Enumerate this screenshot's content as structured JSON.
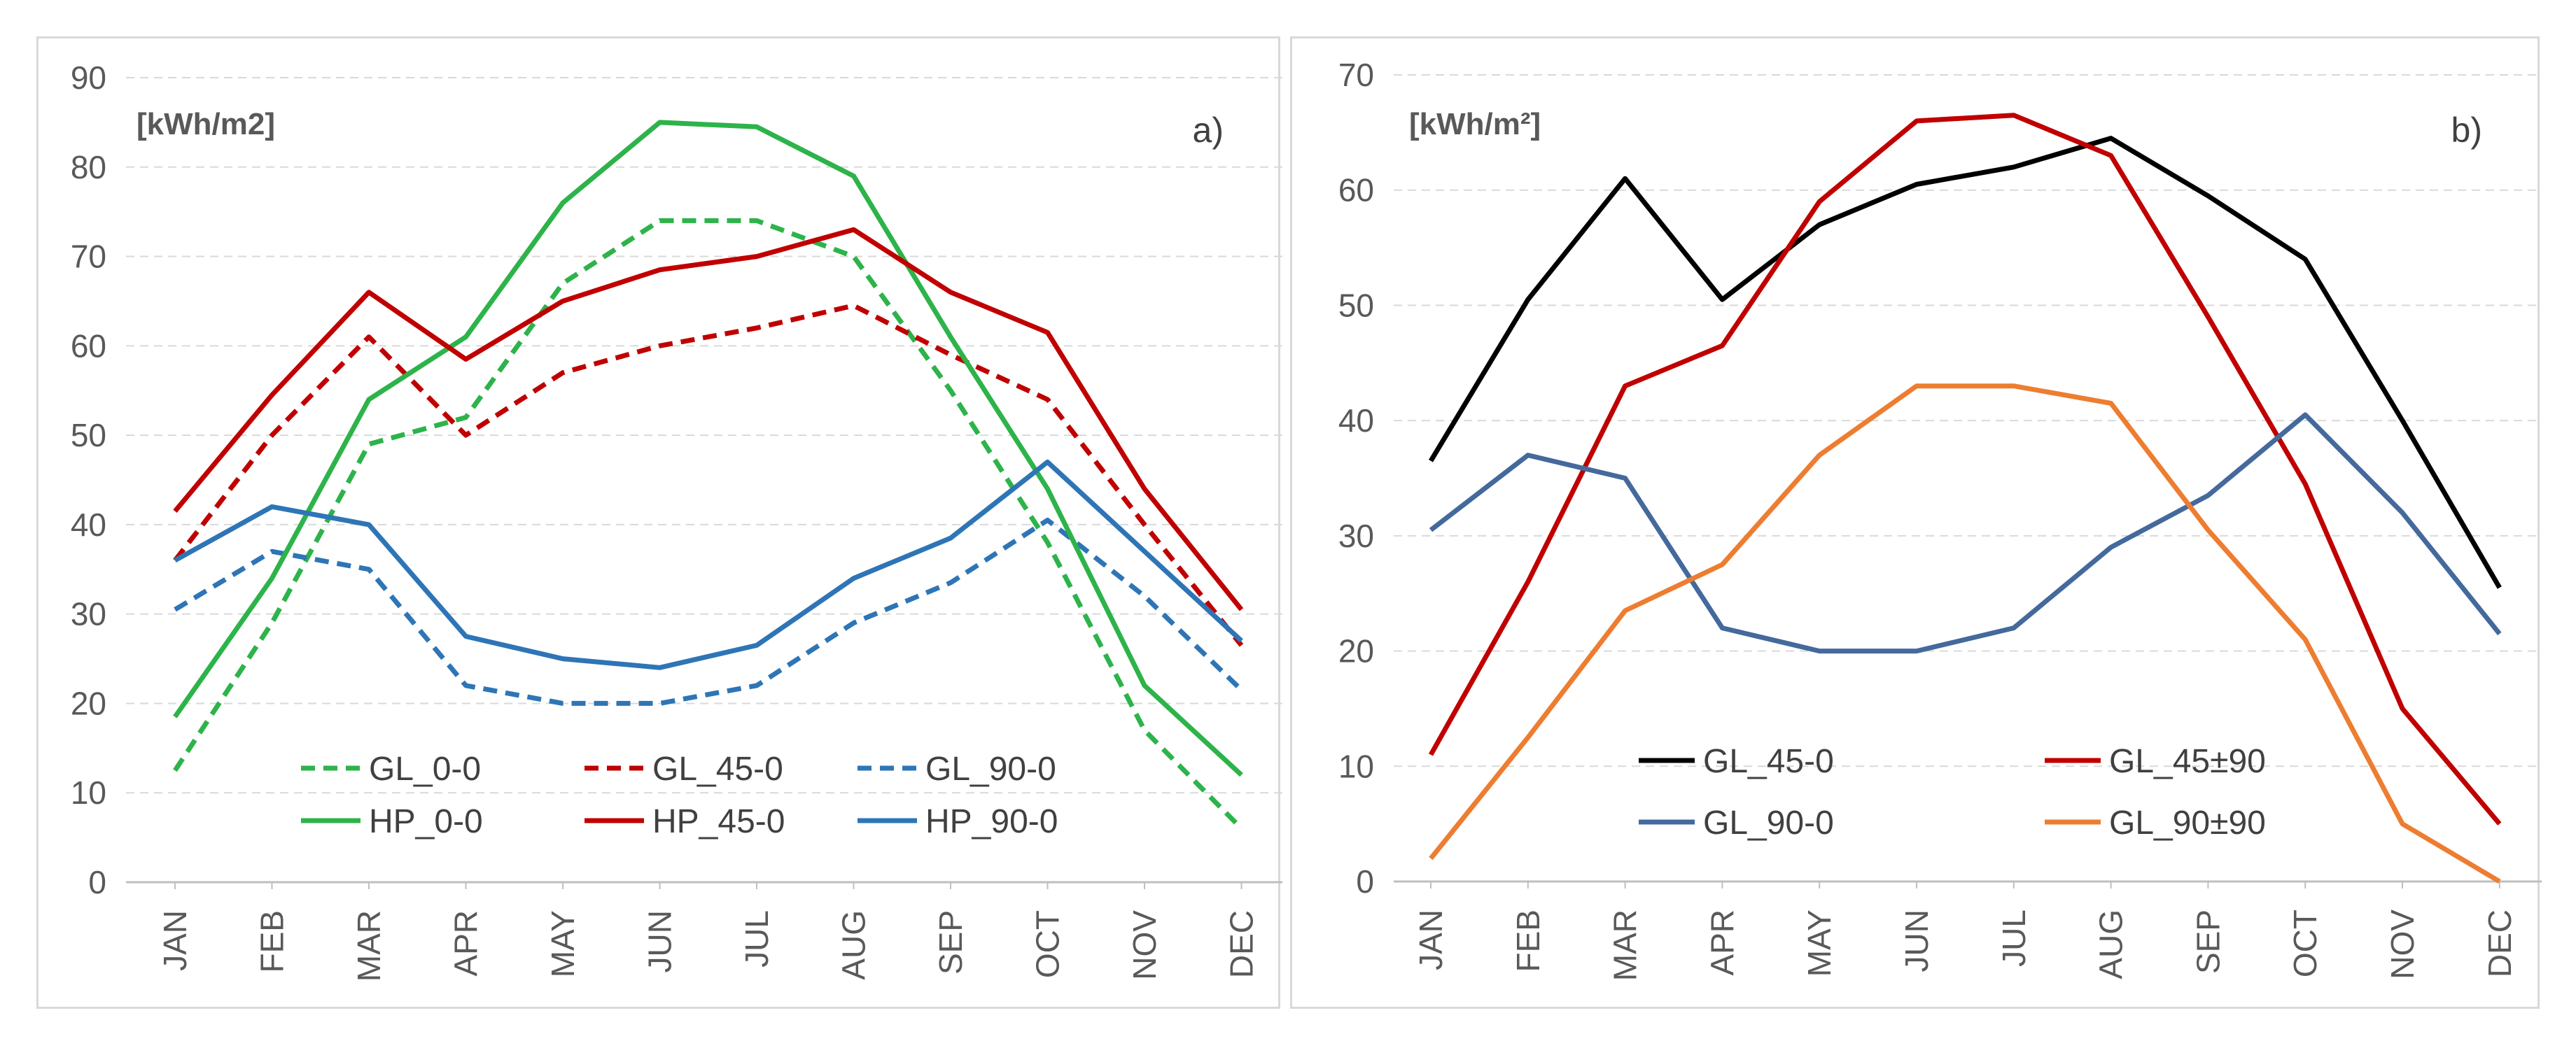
{
  "chart_data": [
    {
      "type": "line",
      "panel_label": "a)",
      "unit_label": "[kWh/m2]",
      "categories": [
        "JAN",
        "FEB",
        "MAR",
        "APR",
        "MAY",
        "JUN",
        "JUL",
        "AUG",
        "SEP",
        "OCT",
        "NOV",
        "DEC"
      ],
      "ylim": [
        0,
        90
      ],
      "yticks": [
        0,
        10,
        20,
        30,
        40,
        50,
        60,
        70,
        80,
        90
      ],
      "grid": true,
      "legend_position": "lower-center",
      "series": [
        {
          "name": "GL_0-0",
          "color": "#2db34a",
          "dash": true,
          "values": [
            12.5,
            29,
            49,
            52,
            67,
            74,
            74,
            70,
            55,
            38,
            17,
            6
          ]
        },
        {
          "name": "GL_45-0",
          "color": "#c00000",
          "dash": true,
          "values": [
            36,
            50,
            61,
            50,
            57,
            60,
            62,
            64.5,
            59,
            54,
            40,
            26.5
          ]
        },
        {
          "name": "GL_90-0",
          "color": "#2e75b6",
          "dash": true,
          "values": [
            30.5,
            37,
            35,
            22,
            20,
            20,
            22,
            29,
            33.5,
            40.5,
            32,
            21.5
          ]
        },
        {
          "name": "HP_0-0",
          "color": "#2db34a",
          "dash": false,
          "values": [
            18.5,
            34,
            54,
            61,
            76,
            85,
            84.5,
            79,
            61,
            44,
            22,
            12
          ]
        },
        {
          "name": "HP_45-0",
          "color": "#c00000",
          "dash": false,
          "values": [
            41.5,
            54.5,
            66,
            58.5,
            65,
            68.5,
            70,
            73,
            66,
            61.5,
            44,
            30.5
          ]
        },
        {
          "name": "HP_90-0",
          "color": "#2e75b6",
          "dash": false,
          "values": [
            36,
            42,
            40,
            27.5,
            25,
            24,
            26.5,
            34,
            38.5,
            47,
            37,
            27
          ]
        }
      ]
    },
    {
      "type": "line",
      "panel_label": "b)",
      "unit_label": "[kWh/m²]",
      "categories": [
        "JAN",
        "FEB",
        "MAR",
        "APR",
        "MAY",
        "JUN",
        "JUL",
        "AUG",
        "SEP",
        "OCT",
        "NOV",
        "DEC"
      ],
      "ylim": [
        0,
        70
      ],
      "yticks": [
        0,
        10,
        20,
        30,
        40,
        50,
        60,
        70
      ],
      "grid": true,
      "legend_position": "lower-center",
      "series": [
        {
          "name": "GL_45-0",
          "color": "#000000",
          "dash": false,
          "values": [
            36.5,
            50.5,
            61,
            50.5,
            57,
            60.5,
            62,
            64.5,
            59.5,
            54,
            40,
            25.5
          ]
        },
        {
          "name": "GL_45±90",
          "color": "#c00000",
          "dash": false,
          "values": [
            11,
            26,
            43,
            46.5,
            59,
            66,
            66.5,
            63,
            49,
            34.5,
            15,
            5
          ]
        },
        {
          "name": "GL_90-0",
          "color": "#44699c",
          "dash": false,
          "values": [
            30.5,
            37,
            35,
            22,
            20,
            20,
            22,
            29,
            33.5,
            40.5,
            32,
            21.5
          ]
        },
        {
          "name": "GL_90±90",
          "color": "#ed7d31",
          "dash": false,
          "values": [
            2,
            12.5,
            23.5,
            27.5,
            37,
            43,
            43,
            41.5,
            30.5,
            21,
            5,
            0
          ]
        }
      ]
    }
  ]
}
